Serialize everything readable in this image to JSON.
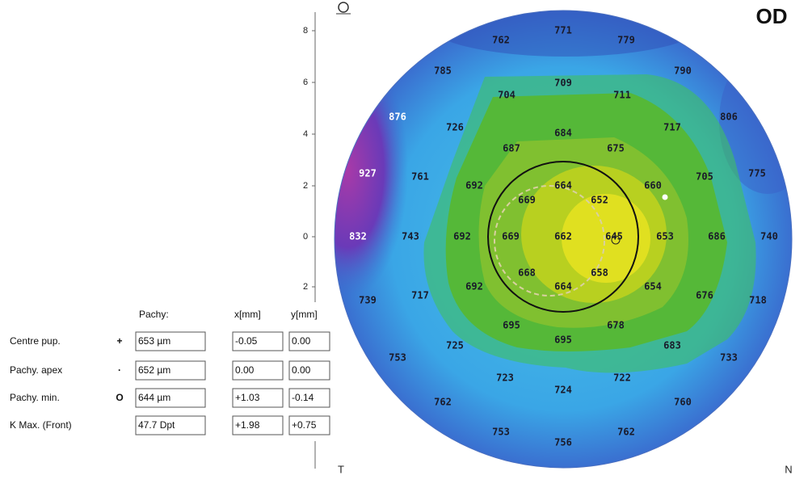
{
  "header": {
    "eye": "OD",
    "side_left": "T",
    "side_right": "N"
  },
  "axis": {
    "ticks": [
      "8",
      "6",
      "4",
      "2",
      "0",
      "2"
    ]
  },
  "map": {
    "values": [
      771,
      762,
      779,
      785,
      790,
      709,
      704,
      711,
      876,
      806,
      726,
      717,
      684,
      687,
      675,
      927,
      761,
      692,
      664,
      669,
      652,
      660,
      705,
      775,
      832,
      743,
      692,
      669,
      662,
      645,
      653,
      686,
      740,
      668,
      658,
      692,
      664,
      654,
      739,
      717,
      676,
      718,
      695,
      678,
      695,
      725,
      683,
      753,
      733,
      723,
      722,
      724,
      762,
      760,
      753,
      762,
      756
    ]
  },
  "table": {
    "columns": [
      "Pachy:",
      "x[mm]",
      "y[mm]"
    ],
    "rows": [
      {
        "label": "Centre pup.",
        "symbol": "+",
        "pachy": "653 µm",
        "x": "-0.05",
        "y": "0.00"
      },
      {
        "label": "Pachy. apex",
        "symbol": "·",
        "pachy": "652 µm",
        "x": "0.00",
        "y": "0.00"
      },
      {
        "label": "Pachy. min.",
        "symbol": "O",
        "pachy": "644 µm",
        "x": "+1.03",
        "y": "-0.14"
      },
      {
        "label": "K Max. (Front)",
        "pachy": "47.7 Dpt",
        "x": "+1.98",
        "y": "+0.75"
      }
    ]
  }
}
